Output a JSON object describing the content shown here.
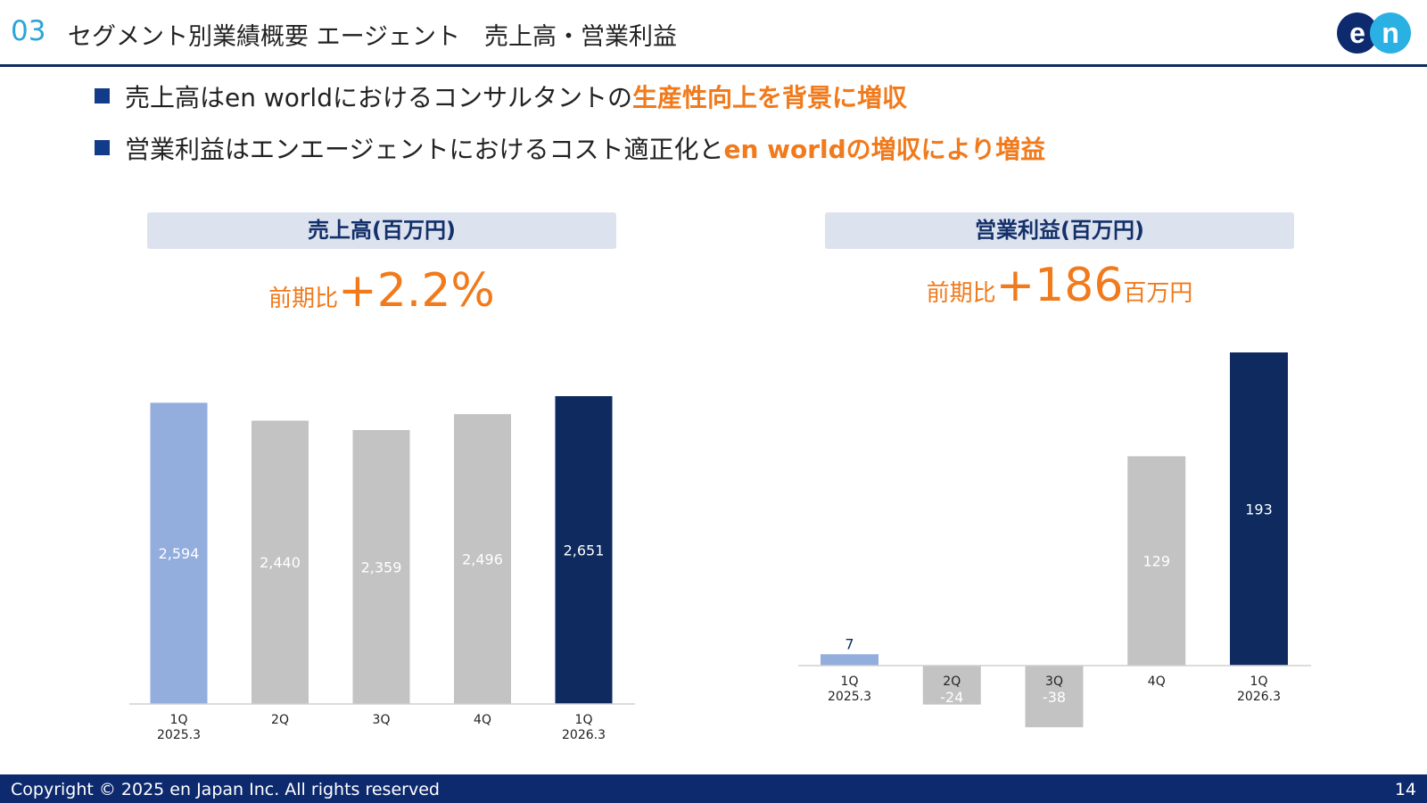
{
  "header": {
    "section_number": "03",
    "title": "セグメント別業績概要 エージェント　売上高・営業利益",
    "logo_text": "en"
  },
  "bullets": [
    {
      "plain": "売上高はen worldにおけるコンサルタントの",
      "highlight": "生産性向上を背景に増収"
    },
    {
      "plain": "営業利益はエンエージェントにおけるコスト適正化と",
      "highlight": "en worldの増収により増益"
    }
  ],
  "revenue_panel": {
    "title": "売上高(百万円)",
    "growth_prefix": "前期比",
    "growth_value": "+2.2%",
    "growth_suffix": ""
  },
  "profit_panel": {
    "title": "営業利益(百万円)",
    "growth_prefix": "前期比",
    "growth_value": "+186",
    "growth_suffix": "百万円"
  },
  "colors": {
    "prior_year_q": "#93addd",
    "other_q": "#c3c3c3",
    "current_q": "#0e2a5e",
    "accent": "#f07a1c"
  },
  "chart_data": [
    {
      "type": "bar",
      "title": "売上高(百万円)",
      "categories": [
        [
          "1Q",
          "2025.3"
        ],
        [
          "2Q"
        ],
        [
          "3Q"
        ],
        [
          "4Q"
        ],
        [
          "1Q",
          "2026.3"
        ]
      ],
      "values": [
        2594,
        2440,
        2359,
        2496,
        2651
      ],
      "value_labels": [
        "2,594",
        "2,440",
        "2,359",
        "2,496",
        "2,651"
      ],
      "ylim": [
        0,
        2651
      ],
      "grid": false,
      "legend": "none"
    },
    {
      "type": "bar",
      "title": "営業利益(百万円)",
      "categories": [
        [
          "1Q",
          "2025.3"
        ],
        [
          "2Q"
        ],
        [
          "3Q"
        ],
        [
          "4Q"
        ],
        [
          "1Q",
          "2026.3"
        ]
      ],
      "values": [
        7,
        -24,
        -38,
        129,
        193
      ],
      "value_labels": [
        "7",
        "-24",
        "-38",
        "129",
        "193"
      ],
      "ylim": [
        -38,
        193
      ],
      "grid": false,
      "legend": "none"
    }
  ],
  "footer": {
    "copyright": "Copyright © 2025 en Japan Inc. All rights reserved",
    "page_number": "14"
  }
}
